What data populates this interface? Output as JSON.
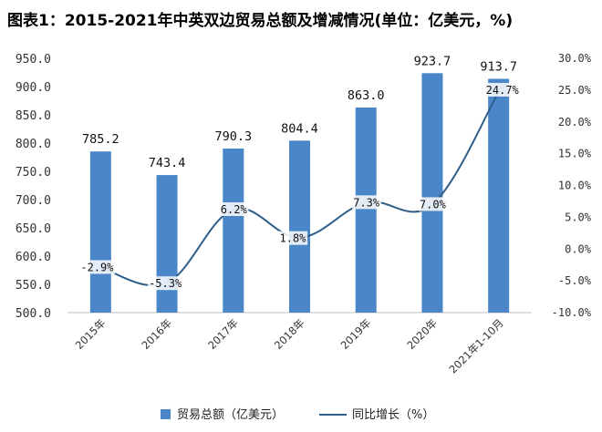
{
  "title": "图表1：2015-2021年中英双边贸易总额及增减情况(单位：亿美元，%)",
  "chart_data": {
    "type": "bar+line",
    "categories": [
      "2015年",
      "2016年",
      "2017年",
      "2018年",
      "2019年",
      "2020年",
      "2021年1-10月"
    ],
    "series": [
      {
        "name": "贸易总额（亿美元）",
        "type": "bar",
        "axis": "left",
        "values": [
          785.2,
          743.4,
          790.3,
          804.4,
          863.0,
          923.7,
          913.7
        ],
        "labels": [
          "785.2",
          "743.4",
          "790.3",
          "804.4",
          "863.0",
          "923.7",
          "913.7"
        ]
      },
      {
        "name": "同比增长（%）",
        "type": "line",
        "axis": "right",
        "values": [
          -2.9,
          -5.3,
          6.2,
          1.8,
          7.3,
          7.0,
          24.7
        ],
        "labels": [
          "-2.9%",
          "-5.3%",
          "6.2%",
          "1.8%",
          "7.3%",
          "7.0%",
          "24.7%"
        ]
      }
    ],
    "ylim_left": [
      500,
      950
    ],
    "yticks_left": [
      "500.0",
      "550.0",
      "600.0",
      "650.0",
      "700.0",
      "750.0",
      "800.0",
      "850.0",
      "900.0",
      "950.0"
    ],
    "ylim_right": [
      -10,
      30
    ],
    "yticks_right": [
      "-10.0%",
      "-5.0%",
      "0.0%",
      "5.0%",
      "10.0%",
      "15.0%",
      "20.0%",
      "25.0%",
      "30.0%"
    ],
    "grid": false,
    "legend_position": "bottom",
    "colors": {
      "bar": "#4a86c8",
      "line": "#2e5f8a"
    }
  }
}
